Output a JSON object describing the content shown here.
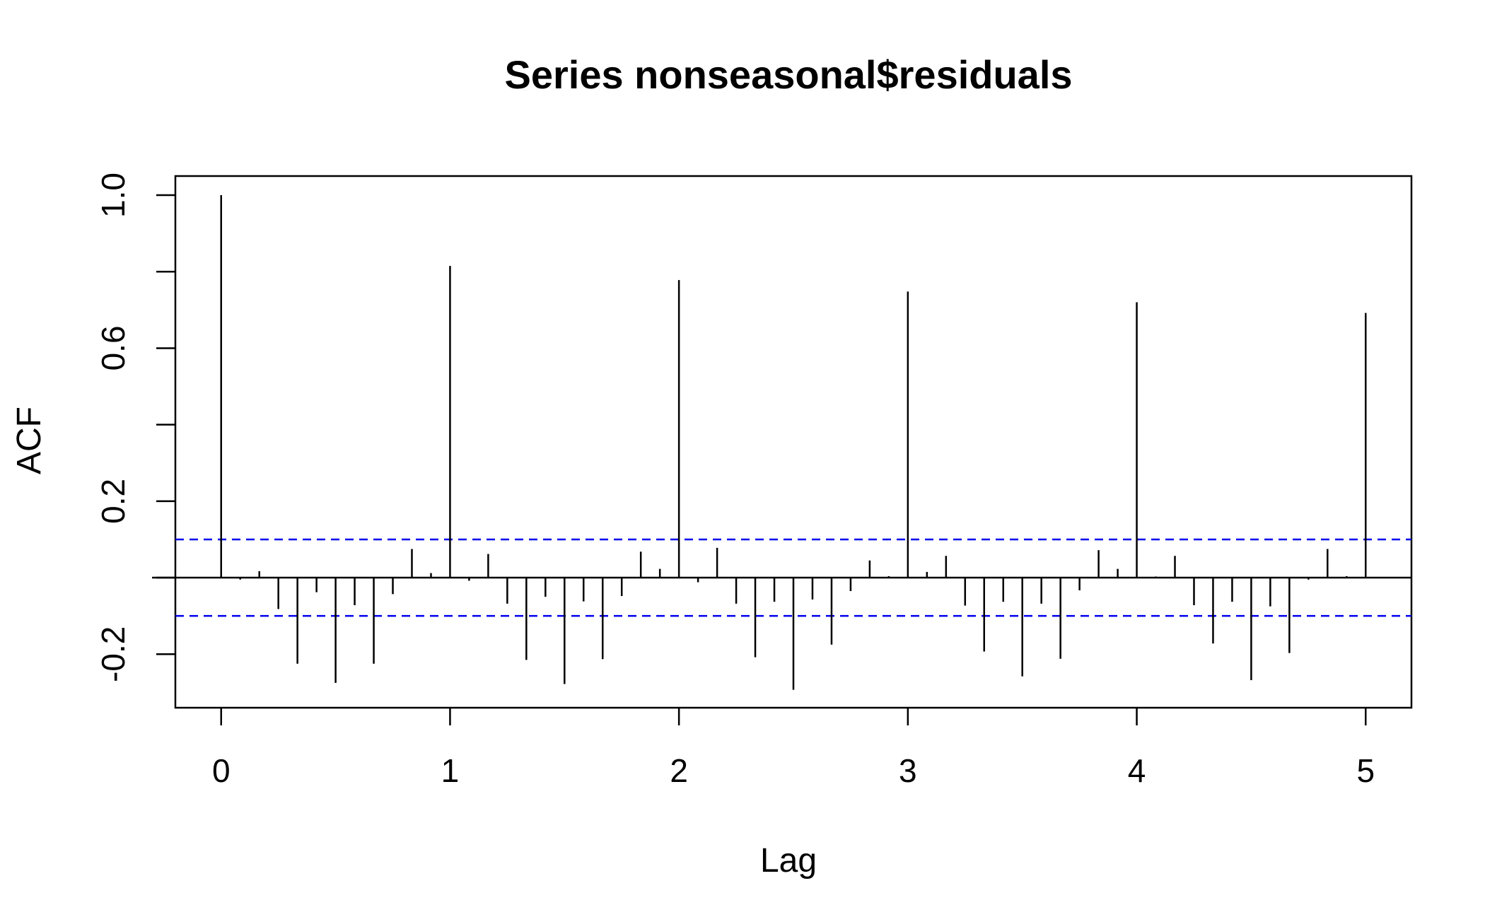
{
  "chart_data": {
    "type": "bar",
    "title": "Series  nonseasonal$residuals",
    "xlabel": "Lag",
    "ylabel": "ACF",
    "xlim": [
      -0.2,
      5.2
    ],
    "ylim": [
      -0.34,
      1.05
    ],
    "x_ticks": [
      0,
      1,
      2,
      3,
      4,
      5
    ],
    "x_tick_labels": [
      "0",
      "1",
      "2",
      "3",
      "4",
      "5"
    ],
    "y_ticks": [
      -0.2,
      0.2,
      0.6,
      1.0
    ],
    "y_tick_labels": [
      "-0.2",
      "0.2",
      "0.6",
      "1.0"
    ],
    "y_minor_ticks": [
      0.0,
      0.4,
      0.8
    ],
    "confidence_bound": 0.1,
    "confidence_color": "#0000ee",
    "grid": false,
    "series": [
      {
        "lags": [
          0,
          0.0833,
          0.1667,
          0.25,
          0.3333,
          0.4167,
          0.5,
          0.5833,
          0.6667,
          0.75,
          0.8333,
          0.9167,
          1,
          1.0833,
          1.1667,
          1.25,
          1.3333,
          1.4167,
          1.5,
          1.5833,
          1.6667,
          1.75,
          1.8333,
          1.9167,
          2,
          2.0833,
          2.1667,
          2.25,
          2.3333,
          2.4167,
          2.5,
          2.5833,
          2.6667,
          2.75,
          2.8333,
          2.9167,
          3,
          3.0833,
          3.1667,
          3.25,
          3.3333,
          3.4167,
          3.5,
          3.5833,
          3.6667,
          3.75,
          3.8333,
          3.9167,
          4,
          4.0833,
          4.1667,
          4.25,
          4.3333,
          4.4167,
          4.5,
          4.5833,
          4.6667,
          4.75,
          4.8333,
          4.9167,
          5
        ],
        "values": [
          1.0,
          -0.005,
          0.017,
          -0.082,
          -0.225,
          -0.038,
          -0.275,
          -0.072,
          -0.225,
          -0.043,
          0.075,
          0.012,
          0.815,
          -0.008,
          0.062,
          -0.068,
          -0.215,
          -0.05,
          -0.278,
          -0.062,
          -0.213,
          -0.048,
          0.068,
          0.023,
          0.778,
          -0.012,
          0.078,
          -0.068,
          -0.208,
          -0.063,
          -0.293,
          -0.057,
          -0.175,
          -0.035,
          0.045,
          0.004,
          0.748,
          0.015,
          0.057,
          -0.073,
          -0.193,
          -0.063,
          -0.258,
          -0.068,
          -0.212,
          -0.033,
          0.072,
          0.023,
          0.72,
          0.003,
          0.057,
          -0.072,
          -0.172,
          -0.063,
          -0.268,
          -0.075,
          -0.197,
          -0.005,
          0.075,
          0.004,
          0.692
        ]
      }
    ]
  }
}
